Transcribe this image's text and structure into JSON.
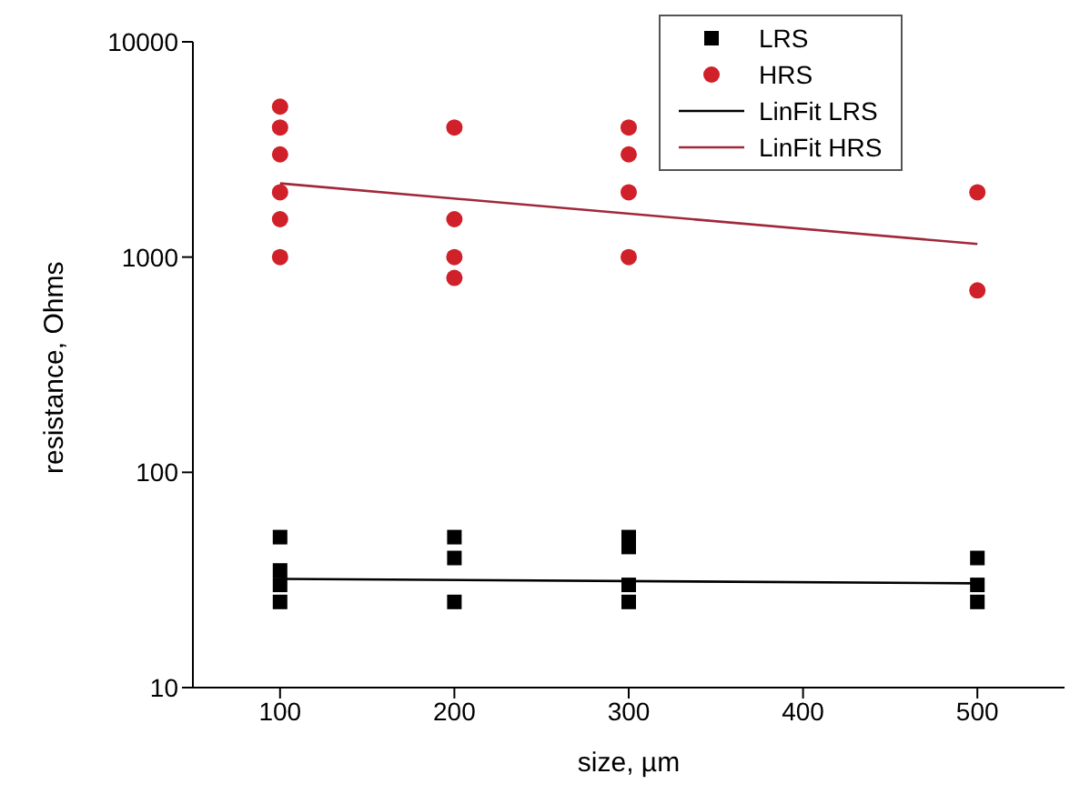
{
  "chart_data": {
    "type": "scatter",
    "xlabel": "size, µm",
    "ylabel": "resistance, Ohms",
    "log": "y",
    "xlim": [
      50,
      550
    ],
    "xticks": [
      100,
      200,
      300,
      400,
      500
    ],
    "ylim": [
      10,
      10000
    ],
    "yticks": [
      10,
      100,
      1000,
      10000
    ],
    "grid": false,
    "legend": "top right",
    "series": [
      {
        "name": "LRS",
        "marker": "square",
        "color": "#000000",
        "x": [
          100,
          100,
          100,
          100,
          200,
          200,
          200,
          300,
          300,
          300,
          300,
          500,
          500,
          500
        ],
        "values": [
          50,
          35,
          30,
          25,
          50,
          40,
          25,
          50,
          45,
          30,
          25,
          40,
          30,
          25
        ]
      },
      {
        "name": "HRS",
        "marker": "circle",
        "color": "#d0202a",
        "x": [
          100,
          100,
          100,
          100,
          100,
          100,
          200,
          200,
          200,
          200,
          300,
          300,
          300,
          300,
          500,
          500
        ],
        "values": [
          5000,
          4000,
          3000,
          2000,
          1500,
          1000,
          4000,
          1500,
          1000,
          800,
          4000,
          3000,
          2000,
          1000,
          2000,
          700
        ]
      },
      {
        "name": "LinFit LRS",
        "type": "line",
        "marker": "none",
        "color": "#000000",
        "x": [
          100,
          500
        ],
        "values": [
          32,
          30.5
        ]
      },
      {
        "name": "LinFit HRS",
        "type": "line",
        "marker": "none",
        "color": "#a0283a",
        "x": [
          100,
          500
        ],
        "values": [
          2200,
          1150
        ]
      }
    ]
  }
}
